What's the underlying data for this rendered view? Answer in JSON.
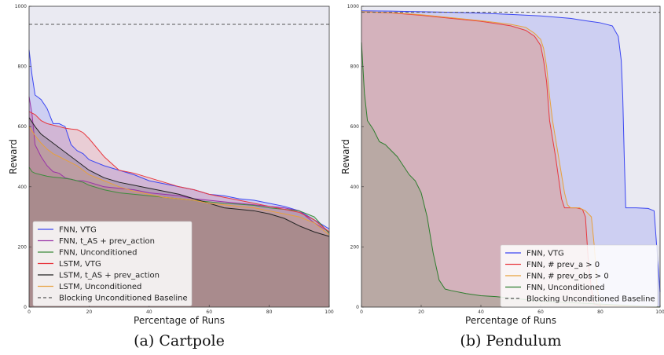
{
  "chart_data": [
    {
      "type": "line",
      "caption": "(a) Cartpole",
      "xlabel": "Percentage of Runs",
      "ylabel": "Reward",
      "xlim": [
        0,
        100
      ],
      "ylim": [
        0,
        1000
      ],
      "xticks": [
        "0",
        "20",
        "40",
        "60",
        "80",
        "100"
      ],
      "yticks": [
        "0",
        "200",
        "400",
        "600",
        "800",
        "1000"
      ],
      "grid": false,
      "fill_under_series": true,
      "legend_position": "lower-left",
      "baseline": {
        "name": "Blocking Unconditioned Baseline",
        "value": 940,
        "color": "#555555",
        "dash": true
      },
      "series": [
        {
          "name": "FNN, VTG",
          "color": "#3b46f2",
          "x": [
            0,
            1,
            2,
            4,
            6,
            8,
            10,
            12,
            14,
            16,
            18,
            20,
            25,
            30,
            35,
            40,
            45,
            50,
            55,
            60,
            65,
            70,
            75,
            80,
            85,
            90,
            95,
            100
          ],
          "y": [
            855,
            770,
            705,
            690,
            660,
            610,
            610,
            600,
            540,
            520,
            510,
            490,
            470,
            455,
            440,
            420,
            410,
            400,
            390,
            375,
            370,
            360,
            355,
            345,
            335,
            320,
            290,
            260
          ]
        },
        {
          "name": "FNN, t_AS + prev_action",
          "color": "#9932a8",
          "x": [
            0,
            1,
            2,
            4,
            6,
            8,
            10,
            12,
            14,
            16,
            18,
            20,
            25,
            30,
            35,
            40,
            45,
            50,
            55,
            60,
            65,
            70,
            75,
            80,
            85,
            90,
            95,
            100
          ],
          "y": [
            700,
            640,
            540,
            500,
            470,
            450,
            445,
            430,
            425,
            420,
            420,
            415,
            400,
            395,
            390,
            380,
            375,
            370,
            360,
            355,
            350,
            345,
            340,
            335,
            330,
            320,
            280,
            250
          ]
        },
        {
          "name": "FNN, Unconditioned",
          "color": "#3c8c3c",
          "x": [
            0,
            1,
            2,
            4,
            6,
            8,
            10,
            12,
            14,
            16,
            18,
            20,
            25,
            30,
            35,
            40,
            45,
            50,
            55,
            60,
            65,
            70,
            75,
            80,
            85,
            90,
            95,
            100
          ],
          "y": [
            465,
            450,
            445,
            440,
            435,
            432,
            430,
            428,
            425,
            420,
            415,
            405,
            390,
            380,
            375,
            370,
            365,
            360,
            355,
            350,
            345,
            342,
            338,
            330,
            325,
            320,
            300,
            245
          ]
        },
        {
          "name": "LSTM, VTG",
          "color": "#e8383f",
          "x": [
            0,
            2,
            4,
            6,
            8,
            10,
            12,
            14,
            16,
            18,
            20,
            25,
            30,
            35,
            40,
            45,
            50,
            55,
            60,
            65,
            70,
            75,
            80,
            85,
            90,
            95,
            100
          ],
          "y": [
            650,
            640,
            620,
            610,
            605,
            600,
            595,
            592,
            590,
            580,
            560,
            500,
            455,
            445,
            430,
            415,
            400,
            390,
            375,
            365,
            355,
            345,
            335,
            325,
            315,
            290,
            250
          ]
        },
        {
          "name": "LSTM, t_AS + prev_action",
          "color": "#222222",
          "x": [
            0,
            2,
            4,
            6,
            8,
            10,
            12,
            14,
            16,
            18,
            20,
            25,
            30,
            35,
            40,
            45,
            50,
            55,
            60,
            65,
            70,
            75,
            80,
            85,
            90,
            95,
            100
          ],
          "y": [
            630,
            600,
            575,
            560,
            545,
            530,
            515,
            500,
            485,
            470,
            455,
            430,
            415,
            405,
            395,
            385,
            375,
            360,
            345,
            330,
            325,
            320,
            310,
            295,
            270,
            250,
            235
          ]
        },
        {
          "name": "LSTM, Unconditioned",
          "color": "#e8a03c",
          "x": [
            0,
            2,
            4,
            6,
            8,
            10,
            12,
            14,
            16,
            18,
            20,
            25,
            30,
            35,
            40,
            45,
            50,
            55,
            60,
            65,
            70,
            75,
            80,
            85,
            90,
            95,
            100
          ],
          "y": [
            600,
            570,
            545,
            525,
            510,
            500,
            490,
            480,
            470,
            455,
            440,
            420,
            400,
            385,
            375,
            365,
            360,
            355,
            345,
            340,
            335,
            330,
            320,
            310,
            300,
            280,
            240
          ]
        }
      ]
    },
    {
      "type": "line",
      "caption": "(b) Pendulum",
      "xlabel": "Percentage of Runs",
      "ylabel": "Reward",
      "xlim": [
        0,
        100
      ],
      "ylim": [
        0,
        1000
      ],
      "xticks": [
        "0",
        "20",
        "40",
        "60",
        "80",
        "100"
      ],
      "yticks": [
        "0",
        "200",
        "400",
        "600",
        "800",
        "1000"
      ],
      "grid": false,
      "fill_under_series": true,
      "legend_position": "lower-right",
      "baseline": {
        "name": "Blocking Unconditioned Baseline",
        "value": 980,
        "color": "#555555",
        "dash": true
      },
      "series": [
        {
          "name": "FNN, VTG",
          "color": "#3b46f2",
          "x": [
            0,
            10,
            20,
            30,
            40,
            50,
            60,
            70,
            75,
            80,
            84,
            86,
            87,
            87.5,
            88,
            88.5,
            89,
            92,
            96,
            98,
            100
          ],
          "y": [
            985,
            984,
            982,
            980,
            977,
            973,
            968,
            960,
            952,
            945,
            935,
            900,
            820,
            700,
            500,
            330,
            330,
            330,
            328,
            320,
            50
          ]
        },
        {
          "name": "FNN, # prev_a > 0",
          "color": "#e8383f",
          "x": [
            0,
            10,
            20,
            30,
            40,
            50,
            55,
            58,
            60,
            61,
            62,
            63,
            64,
            65,
            66,
            67,
            68,
            70,
            72,
            74,
            75,
            76,
            77,
            78,
            80,
            100
          ],
          "y": [
            982,
            978,
            970,
            960,
            950,
            935,
            920,
            900,
            870,
            820,
            750,
            620,
            560,
            500,
            430,
            360,
            330,
            330,
            330,
            325,
            300,
            150,
            60,
            10,
            5,
            0
          ]
        },
        {
          "name": "FNN, # prev_obs > 0",
          "color": "#e8a03c",
          "x": [
            0,
            10,
            20,
            30,
            40,
            50,
            55,
            58,
            60,
            61,
            62,
            63,
            64,
            65,
            66,
            67,
            68,
            69,
            70,
            73,
            75,
            77,
            78,
            79,
            80,
            100
          ],
          "y": [
            982,
            979,
            972,
            962,
            952,
            940,
            930,
            910,
            890,
            860,
            800,
            700,
            620,
            560,
            500,
            440,
            380,
            340,
            330,
            330,
            320,
            300,
            200,
            60,
            5,
            0
          ]
        },
        {
          "name": "FNN, Unconditioned",
          "color": "#2e7d2e",
          "x": [
            0,
            1,
            2,
            4,
            6,
            8,
            10,
            12,
            14,
            16,
            18,
            20,
            22,
            24,
            26,
            28,
            30,
            35,
            40,
            45,
            50,
            60,
            70,
            80,
            100
          ],
          "y": [
            880,
            710,
            620,
            590,
            550,
            540,
            520,
            500,
            470,
            440,
            420,
            380,
            300,
            180,
            90,
            60,
            55,
            45,
            38,
            35,
            30,
            20,
            15,
            10,
            0
          ]
        }
      ]
    }
  ]
}
